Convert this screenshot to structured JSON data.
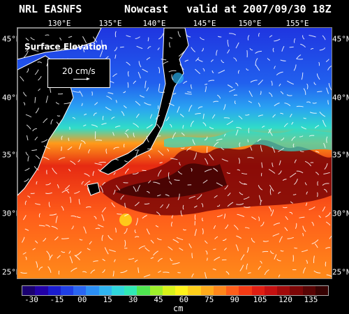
{
  "header": {
    "left": "NRL EASNFS",
    "middle": "Nowcast",
    "right": "valid at 2007/09/30 18Z"
  },
  "axes": {
    "lon_labels": [
      "130°E",
      "135°E",
      "140°E",
      "145°E",
      "150°E",
      "155°E"
    ],
    "lat_labels": [
      "45°N",
      "40°N",
      "35°N",
      "30°N",
      "25°N"
    ]
  },
  "inset": {
    "title": "Surface Elevation",
    "scale_label": "20 cm/s"
  },
  "colorbar": {
    "ticks": [
      "-30",
      "-15",
      "00",
      "15",
      "30",
      "45",
      "60",
      "75",
      "90",
      "105",
      "120",
      "135"
    ],
    "units": "cm",
    "colors": [
      "#1a0070",
      "#2200a6",
      "#1a1ccf",
      "#1f3fe6",
      "#2a66f2",
      "#2b8ff5",
      "#2fb4f0",
      "#2fd6dc",
      "#30e8b4",
      "#4fe650",
      "#9ef02a",
      "#d8f21a",
      "#fff31a",
      "#ffcf1a",
      "#ffaa1a",
      "#ff861a",
      "#ff5e1a",
      "#f43a14",
      "#e01e12",
      "#c41010",
      "#a10a0a",
      "#7c0606",
      "#580404",
      "#360202"
    ]
  },
  "colors": {
    "land": "#000000",
    "coast": "#ffffff",
    "background": "#000000"
  }
}
